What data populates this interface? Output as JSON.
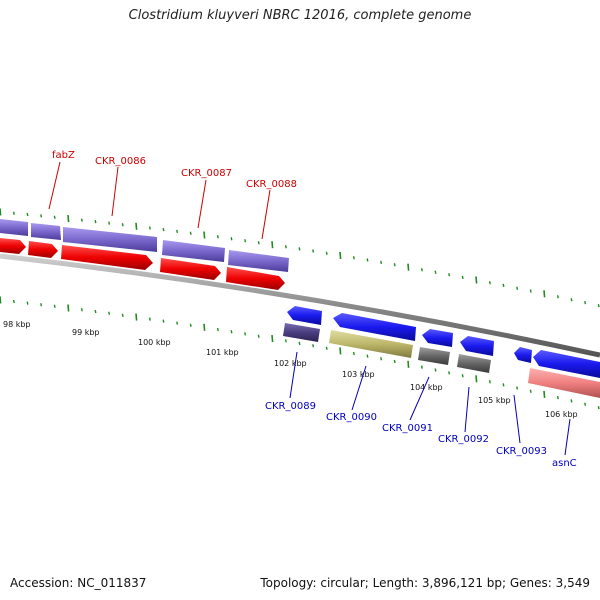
{
  "title": "Clostridium kluyveri NBRC 12016, complete genome",
  "footer": {
    "accession": "Accession: NC_011837",
    "summary": "Topology: circular; Length: 3,896,121 bp; Genes: 3,549"
  },
  "colors": {
    "cds_purple": "#7b68cc",
    "cds_red": "#ee0000",
    "cds_blue": "#1a1aee",
    "dark_purple": "#4a3d80",
    "olive": "#bdb76b",
    "gray": "#666666",
    "pink": "#f08080",
    "tick_green": "#228b22",
    "backbone": "#888888",
    "top_label": "#cc0000",
    "bottom_label": "#0000bb"
  },
  "scale_ticks": [
    "98 kbp",
    "99 kbp",
    "100 kbp",
    "101 kbp",
    "102 kbp",
    "103 kbp",
    "104 kbp",
    "105 kbp",
    "106 kbp"
  ],
  "top_gene_labels": [
    "fabZ",
    "CKR_0086",
    "CKR_0087",
    "CKR_0088"
  ],
  "bottom_gene_labels": [
    "CKR_0089",
    "CKR_0090",
    "CKR_0091",
    "CKR_0092",
    "CKR_0093",
    "asnC"
  ]
}
